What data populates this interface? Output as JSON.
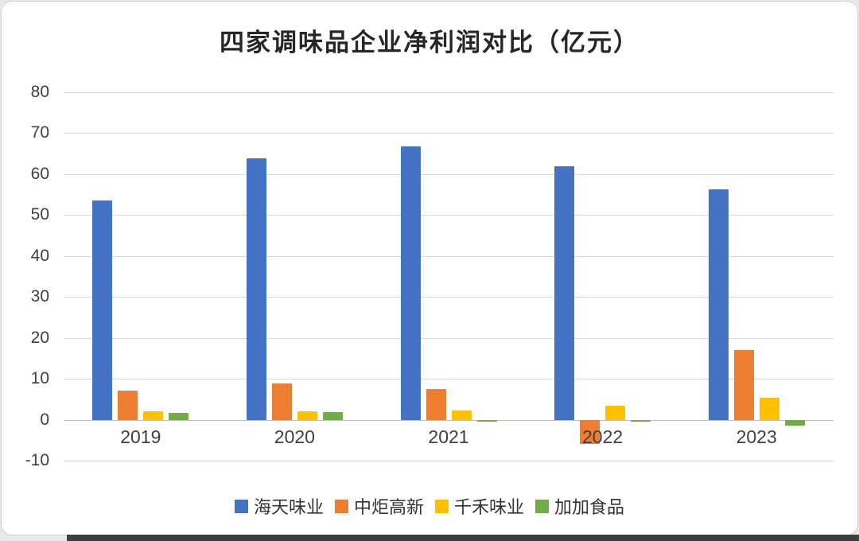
{
  "chart_data": {
    "type": "bar",
    "title": "四家调味品企业净利润对比（亿元）",
    "categories": [
      "2019",
      "2020",
      "2021",
      "2022",
      "2023"
    ],
    "series": [
      {
        "name": "海天味业",
        "color": "#4472C4",
        "values": [
          53.5,
          63.9,
          66.7,
          61.9,
          56.3
        ]
      },
      {
        "name": "中炬高新",
        "color": "#ED7D31",
        "values": [
          7.2,
          8.9,
          7.4,
          -5.9,
          17.0
        ]
      },
      {
        "name": "千禾味业",
        "color": "#FFC000",
        "values": [
          2.0,
          2.1,
          2.2,
          3.4,
          5.3
        ]
      },
      {
        "name": "加加食品",
        "color": "#70AD47",
        "values": [
          1.6,
          1.8,
          -0.4,
          -0.4,
          -1.5
        ]
      }
    ],
    "ylim": [
      -10,
      80
    ],
    "ytick_step": 10,
    "grid": true,
    "legend_position": "bottom",
    "xlabel": "",
    "ylabel": ""
  }
}
